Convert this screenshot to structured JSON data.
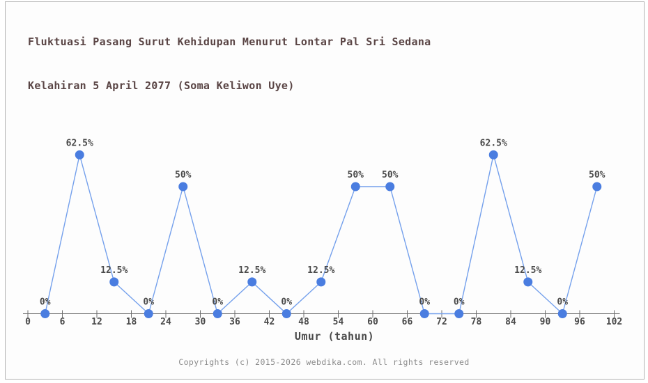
{
  "page": {
    "footer": "Copyrights (c) 2015-2026 webdika.com. All rights reserved"
  },
  "chart_data": {
    "type": "line",
    "title": "Fluktuasi Pasang Surut Kehidupan Menurut Lontar Pal Sri Sedana Kelahiran 5 April 2077 (Soma Keliwon Uye)",
    "title_line1": "Fluktuasi Pasang Surut Kehidupan Menurut Lontar Pal Sri Sedana",
    "title_line2": "Kelahiran 5 April 2077 (Soma Keliwon Uye)",
    "xlabel": "Umur (tahun)",
    "ylabel": "",
    "x": [
      3,
      9,
      15,
      21,
      27,
      33,
      39,
      45,
      51,
      57,
      63,
      69,
      75,
      81,
      87,
      93,
      99
    ],
    "values": [
      0,
      62.5,
      12.5,
      0,
      50,
      0,
      12.5,
      0,
      12.5,
      50,
      50,
      0,
      0,
      62.5,
      12.5,
      0,
      50
    ],
    "point_labels": [
      "0%",
      "62.5%",
      "12.5%",
      "0%",
      "50%",
      "0%",
      "12.5%",
      "0%",
      "12.5%",
      "50%",
      "50%",
      "0%",
      "0%",
      "62.5%",
      "12.5%",
      "0%",
      "50%"
    ],
    "x_ticks": [
      0,
      6,
      12,
      18,
      24,
      30,
      36,
      42,
      48,
      54,
      60,
      66,
      72,
      78,
      84,
      90,
      96,
      102
    ],
    "xlim": [
      0,
      102
    ],
    "ylim": [
      0,
      75
    ],
    "grid": false,
    "legend": "none",
    "y_axis_shown": false,
    "colors": {
      "line": "#74a0ec",
      "marker": "#4a7de0",
      "title": "#5a4545",
      "label": "#4a4a4a",
      "axis": "#6e6e6e",
      "footer": "#8a8a8a"
    }
  }
}
